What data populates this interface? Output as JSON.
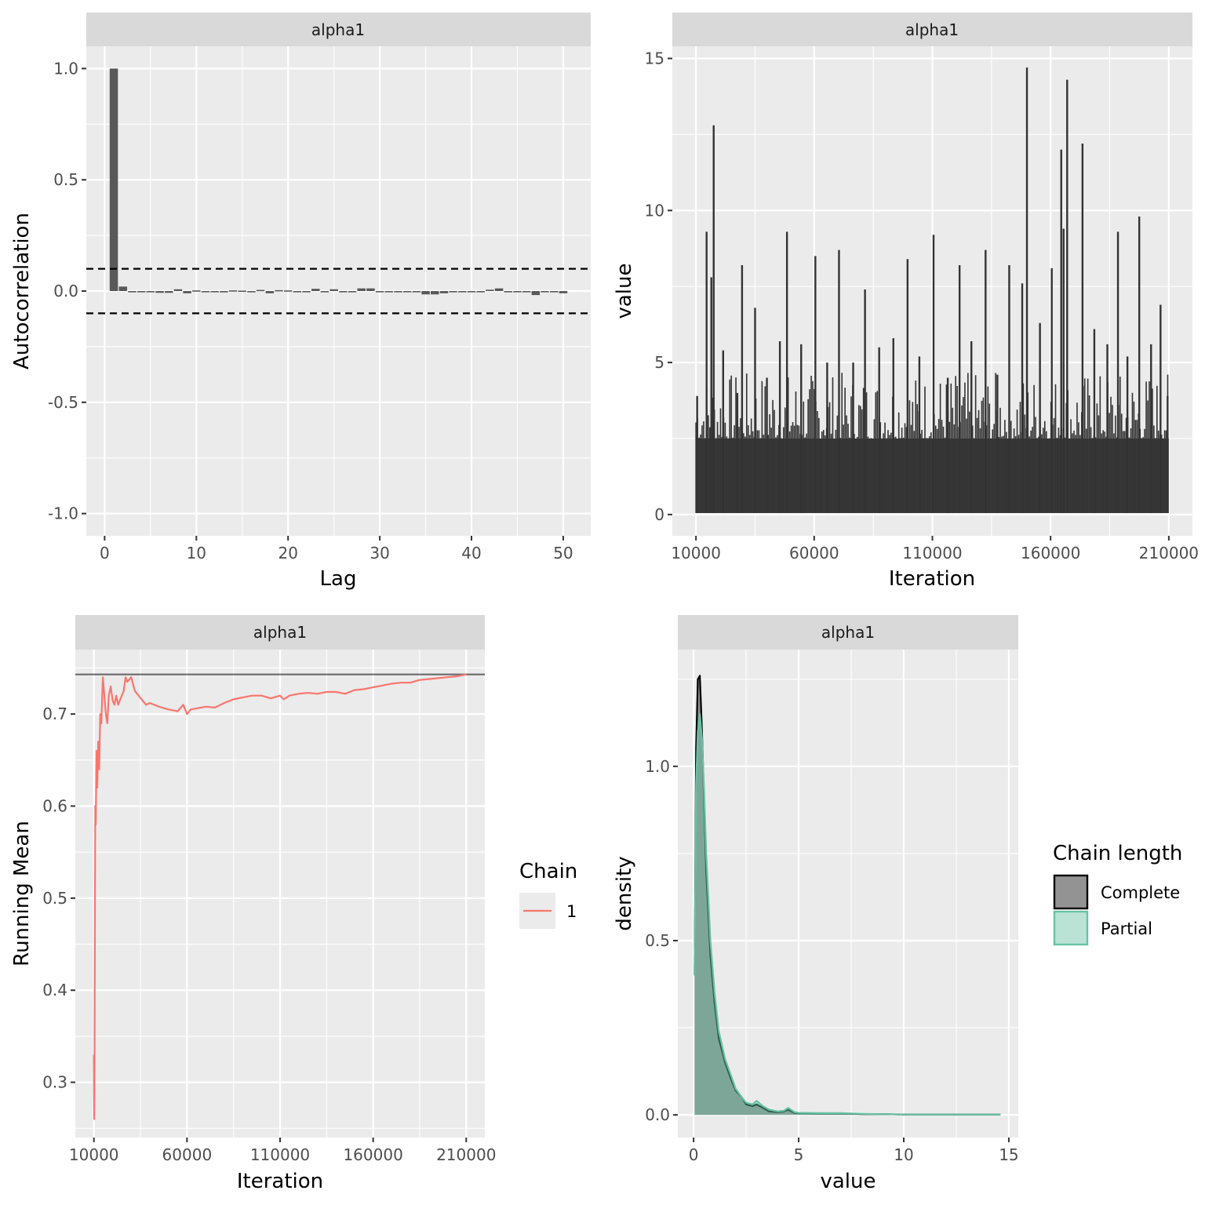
{
  "colors": {
    "panel_bg": "#EBEBEB",
    "strip_bg": "#D9D9D9",
    "grid": "#FFFFFF",
    "bar": "#595959",
    "trace": "#333333",
    "running_mean": "#F8766D",
    "complete_fill": "#808080",
    "partial_fill": "#66C2A5",
    "partial_line": "#66C2A5",
    "text": "#4D4D4D",
    "title": "#000000"
  },
  "chart_data": [
    {
      "id": "acf",
      "type": "bar",
      "strip": "alpha1",
      "xlabel": "Lag",
      "ylabel": "Autocorrelation",
      "xlim": [
        -2,
        53
      ],
      "ylim": [
        -1.1,
        1.1
      ],
      "xticks": [
        0,
        10,
        20,
        30,
        40,
        50
      ],
      "yticks": [
        -1.0,
        -0.5,
        0.0,
        0.5,
        1.0
      ],
      "ytick_labels": [
        "-1.0",
        "-0.5",
        "0.0",
        "0.5",
        "1.0"
      ],
      "ci_band": 0.1,
      "lags": [
        1,
        2,
        3,
        4,
        5,
        6,
        7,
        8,
        9,
        10,
        11,
        12,
        13,
        14,
        15,
        16,
        17,
        18,
        19,
        20,
        21,
        22,
        23,
        24,
        25,
        26,
        27,
        28,
        29,
        30,
        31,
        32,
        33,
        34,
        35,
        36,
        37,
        38,
        39,
        40,
        41,
        42,
        43,
        44,
        45,
        46,
        47,
        48,
        49,
        50
      ],
      "values": [
        1.0,
        0.02,
        0.0,
        -0.002,
        -0.005,
        -0.008,
        -0.008,
        0.008,
        -0.01,
        0.003,
        -0.003,
        0.0,
        -0.006,
        0.003,
        0.002,
        -0.004,
        0.005,
        -0.01,
        0.004,
        0.003,
        0.0,
        -0.003,
        0.01,
        0.0,
        0.008,
        0.0,
        0.0,
        0.012,
        0.012,
        -0.005,
        -0.005,
        0.0,
        0.0,
        0.0,
        -0.015,
        -0.015,
        -0.01,
        0.0,
        0.0,
        0.0,
        0.0,
        0.006,
        0.012,
        0.0,
        0.0,
        0.0,
        -0.018,
        -0.003,
        -0.005,
        -0.01
      ]
    },
    {
      "id": "trace",
      "type": "line",
      "strip": "alpha1",
      "xlabel": "Iteration",
      "ylabel": "value",
      "xlim": [
        0,
        220000
      ],
      "ylim": [
        -0.7,
        15.4
      ],
      "xticks": [
        10000,
        60000,
        110000,
        160000,
        210000
      ],
      "yticks": [
        0,
        5,
        10,
        15
      ],
      "x_range": [
        10000,
        210000
      ],
      "baseline_band": [
        0.05,
        2.5
      ],
      "spikes": [
        {
          "x": 10500,
          "y": 3.9
        },
        {
          "x": 14500,
          "y": 9.3
        },
        {
          "x": 16500,
          "y": 7.8
        },
        {
          "x": 17500,
          "y": 12.8
        },
        {
          "x": 21500,
          "y": 5.4
        },
        {
          "x": 27500,
          "y": 4.0
        },
        {
          "x": 29500,
          "y": 8.2
        },
        {
          "x": 35000,
          "y": 6.8
        },
        {
          "x": 40000,
          "y": 4.5
        },
        {
          "x": 45500,
          "y": 5.7
        },
        {
          "x": 48500,
          "y": 9.3
        },
        {
          "x": 54500,
          "y": 5.6
        },
        {
          "x": 60500,
          "y": 8.5
        },
        {
          "x": 65500,
          "y": 5.0
        },
        {
          "x": 70500,
          "y": 8.7
        },
        {
          "x": 76500,
          "y": 5.0
        },
        {
          "x": 81500,
          "y": 7.4
        },
        {
          "x": 87500,
          "y": 5.5
        },
        {
          "x": 93500,
          "y": 5.8
        },
        {
          "x": 99500,
          "y": 8.4
        },
        {
          "x": 104500,
          "y": 5.2
        },
        {
          "x": 110500,
          "y": 9.2
        },
        {
          "x": 116500,
          "y": 4.5
        },
        {
          "x": 121500,
          "y": 8.2
        },
        {
          "x": 126500,
          "y": 5.7
        },
        {
          "x": 132500,
          "y": 8.7
        },
        {
          "x": 137500,
          "y": 4.6
        },
        {
          "x": 142500,
          "y": 8.2
        },
        {
          "x": 148000,
          "y": 7.6
        },
        {
          "x": 150000,
          "y": 14.7
        },
        {
          "x": 155500,
          "y": 6.3
        },
        {
          "x": 160500,
          "y": 8.1
        },
        {
          "x": 164500,
          "y": 12.0
        },
        {
          "x": 165500,
          "y": 9.4
        },
        {
          "x": 167000,
          "y": 14.3
        },
        {
          "x": 173500,
          "y": 12.2
        },
        {
          "x": 178500,
          "y": 6.1
        },
        {
          "x": 184000,
          "y": 5.6
        },
        {
          "x": 188500,
          "y": 9.3
        },
        {
          "x": 192500,
          "y": 5.2
        },
        {
          "x": 197500,
          "y": 9.8
        },
        {
          "x": 202500,
          "y": 5.6
        },
        {
          "x": 206500,
          "y": 6.9
        },
        {
          "x": 209500,
          "y": 3.9
        }
      ]
    },
    {
      "id": "running_mean",
      "type": "line",
      "strip": "alpha1",
      "xlabel": "Iteration",
      "ylabel": "Running Mean",
      "xlim": [
        0,
        220000
      ],
      "ylim": [
        0.24,
        0.77
      ],
      "xticks": [
        10000,
        60000,
        110000,
        160000,
        210000
      ],
      "yticks": [
        0.3,
        0.4,
        0.5,
        0.6,
        0.7
      ],
      "ytick_labels": [
        "0.3",
        "0.4",
        "0.5",
        "0.6",
        "0.7"
      ],
      "hline": 0.743,
      "x": [
        10000,
        10150,
        10300,
        10500,
        10700,
        11000,
        11400,
        11800,
        12300,
        12800,
        13400,
        14000,
        14800,
        15600,
        16400,
        17200,
        18000,
        19000,
        20000,
        21000,
        22000,
        23000,
        24000,
        25000,
        26000,
        27000,
        28000,
        30000,
        32000,
        34000,
        36000,
        38000,
        40000,
        45000,
        50000,
        55000,
        58000,
        60000,
        62000,
        65000,
        70000,
        75000,
        80000,
        85000,
        90000,
        95000,
        100000,
        105000,
        110000,
        112000,
        115000,
        120000,
        125000,
        130000,
        135000,
        140000,
        145000,
        150000,
        155000,
        160000,
        165000,
        170000,
        175000,
        180000,
        185000,
        190000,
        195000,
        200000,
        205000,
        210000
      ],
      "y": [
        0.33,
        0.26,
        0.3,
        0.45,
        0.6,
        0.58,
        0.66,
        0.62,
        0.67,
        0.64,
        0.7,
        0.69,
        0.74,
        0.72,
        0.7,
        0.69,
        0.72,
        0.73,
        0.715,
        0.71,
        0.72,
        0.71,
        0.715,
        0.72,
        0.725,
        0.74,
        0.735,
        0.74,
        0.725,
        0.72,
        0.715,
        0.71,
        0.712,
        0.708,
        0.705,
        0.703,
        0.71,
        0.7,
        0.705,
        0.706,
        0.708,
        0.707,
        0.712,
        0.716,
        0.718,
        0.72,
        0.72,
        0.717,
        0.72,
        0.716,
        0.72,
        0.722,
        0.723,
        0.722,
        0.724,
        0.724,
        0.722,
        0.726,
        0.727,
        0.729,
        0.731,
        0.733,
        0.734,
        0.734,
        0.737,
        0.738,
        0.739,
        0.74,
        0.741,
        0.743
      ]
    },
    {
      "id": "density",
      "type": "area",
      "strip": "alpha1",
      "xlabel": "value",
      "ylabel": "density",
      "xlim": [
        -0.75,
        15.45
      ],
      "ylim": [
        -0.065,
        1.335
      ],
      "xticks": [
        0,
        5,
        10,
        15
      ],
      "yticks": [
        0.0,
        0.5,
        1.0
      ],
      "ytick_labels": [
        "0.0",
        "0.5",
        "1.0"
      ],
      "legend_title": "Chain length",
      "series": [
        {
          "name": "Complete",
          "x": [
            0.05,
            0.12,
            0.2,
            0.3,
            0.4,
            0.5,
            0.6,
            0.8,
            1.0,
            1.2,
            1.5,
            1.8,
            2.0,
            2.3,
            2.5,
            2.8,
            3.0,
            3.3,
            3.6,
            4.0,
            4.3,
            4.5,
            4.8,
            5.0,
            6.0,
            7.0,
            8.0,
            9.0,
            10.0,
            12.0,
            14.6
          ],
          "y": [
            0.4,
            1.05,
            1.25,
            1.26,
            1.1,
            0.9,
            0.7,
            0.46,
            0.32,
            0.22,
            0.15,
            0.1,
            0.07,
            0.05,
            0.03,
            0.025,
            0.03,
            0.02,
            0.01,
            0.008,
            0.01,
            0.015,
            0.006,
            0.005,
            0.004,
            0.004,
            0.002,
            0.002,
            0.001,
            0.001,
            0.001
          ]
        },
        {
          "name": "Partial",
          "x": [
            0.05,
            0.12,
            0.2,
            0.3,
            0.4,
            0.5,
            0.6,
            0.8,
            1.0,
            1.2,
            1.5,
            1.8,
            2.0,
            2.3,
            2.5,
            2.8,
            3.0,
            3.3,
            3.6,
            4.0,
            4.3,
            4.5,
            4.8,
            5.0,
            6.0,
            7.0,
            8.0,
            9.0,
            10.0,
            12.0,
            14.6
          ],
          "y": [
            0.4,
            0.95,
            1.1,
            1.15,
            1.08,
            0.93,
            0.75,
            0.5,
            0.35,
            0.24,
            0.16,
            0.11,
            0.075,
            0.05,
            0.035,
            0.03,
            0.04,
            0.025,
            0.015,
            0.01,
            0.012,
            0.02,
            0.008,
            0.006,
            0.005,
            0.005,
            0.003,
            0.002,
            0.001,
            0.001,
            0.001
          ]
        }
      ]
    }
  ],
  "legends": {
    "chain": {
      "title": "Chain",
      "items": [
        {
          "label": "1",
          "color": "#F8766D"
        }
      ]
    },
    "chain_length": {
      "title": "Chain length",
      "items": [
        {
          "label": "Complete"
        },
        {
          "label": "Partial"
        }
      ]
    }
  }
}
